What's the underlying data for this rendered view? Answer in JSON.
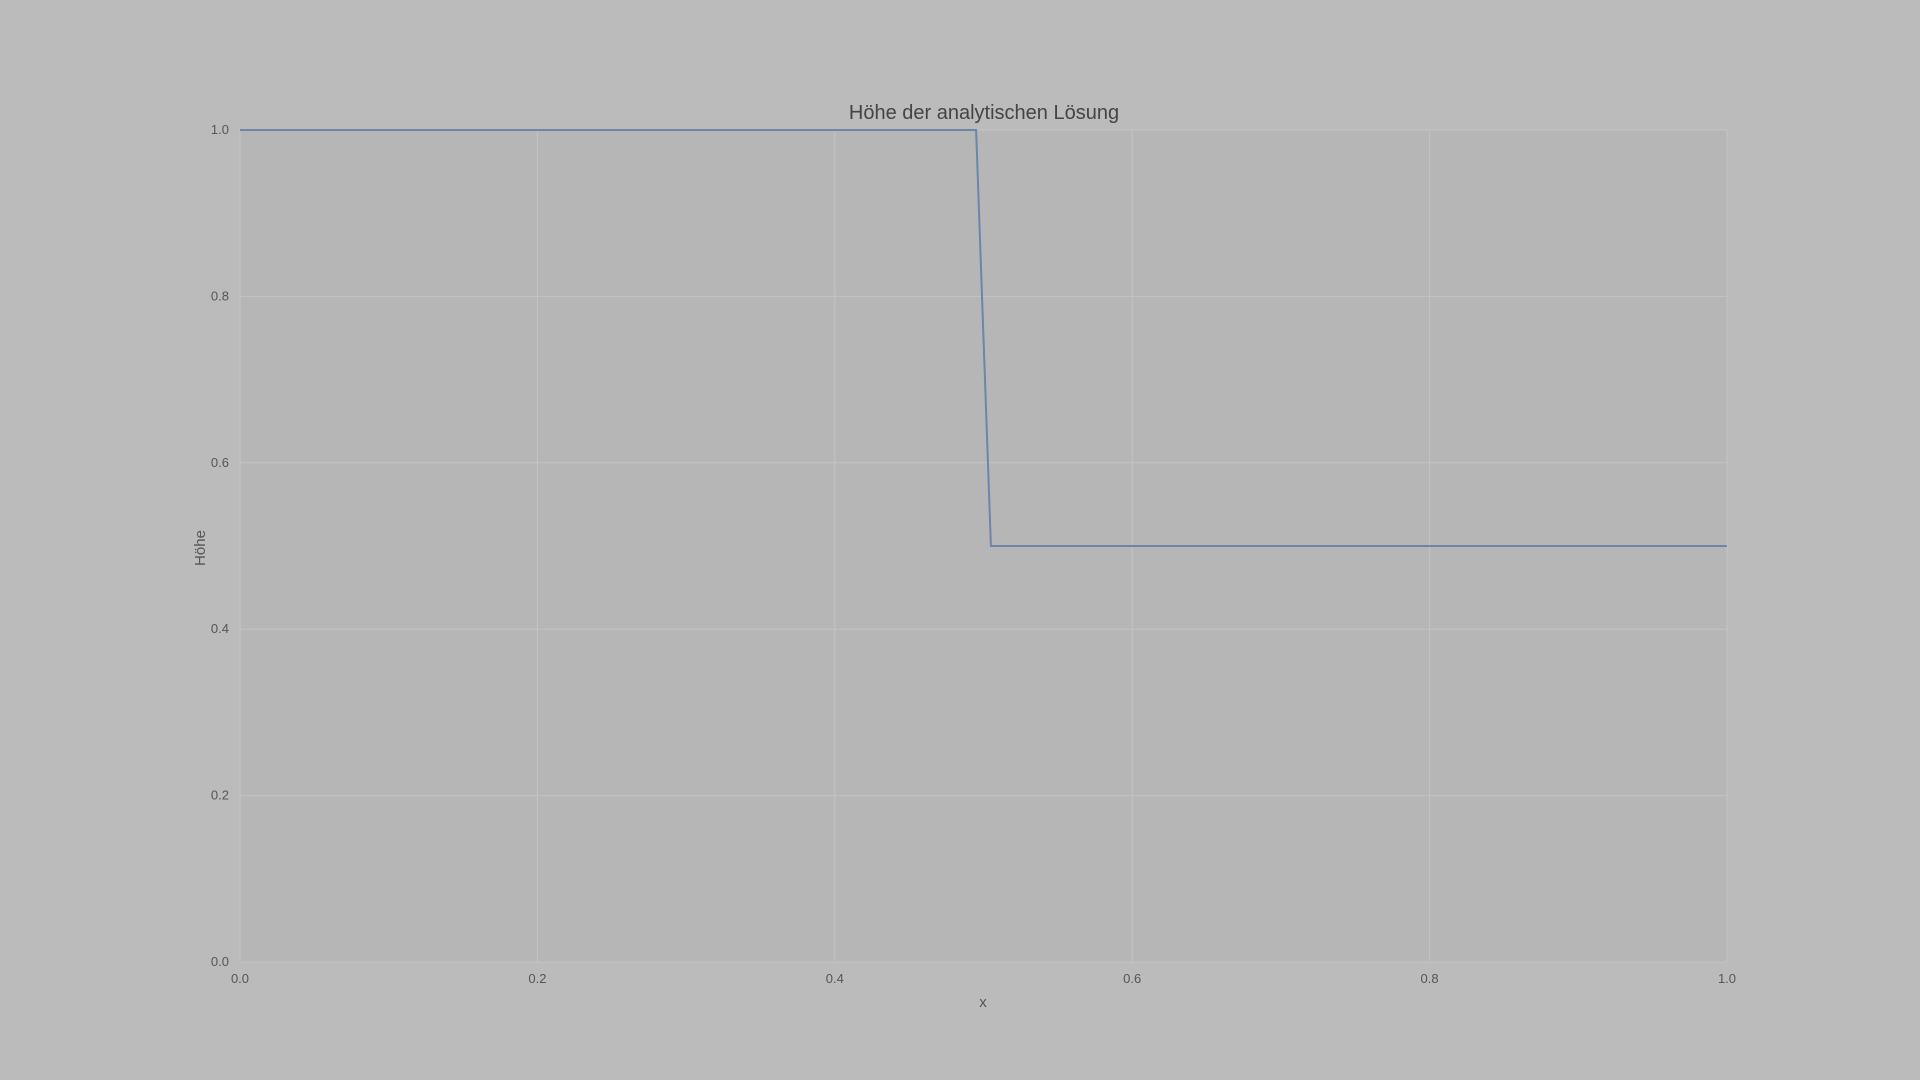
{
  "chart_data": {
    "type": "line",
    "title": "Höhe der analytischen Lösung",
    "xlabel": "x",
    "ylabel": "Höhe",
    "xlim": [
      0.0,
      1.0
    ],
    "ylim": [
      0.0,
      1.0
    ],
    "xticks": [
      "0.0",
      "0.2",
      "0.4",
      "0.6",
      "0.8",
      "1.0"
    ],
    "yticks": [
      "0.0",
      "0.2",
      "0.4",
      "0.6",
      "0.8",
      "1.0"
    ],
    "grid": true,
    "colors": {
      "background": "#bbbbbb",
      "plot_area": "#b6b6b6",
      "line": "#6a86a8"
    },
    "series": [
      {
        "x": [
          0.0,
          0.495,
          0.505,
          1.0
        ],
        "y": [
          1.0,
          1.0,
          0.5,
          0.5
        ]
      }
    ]
  }
}
